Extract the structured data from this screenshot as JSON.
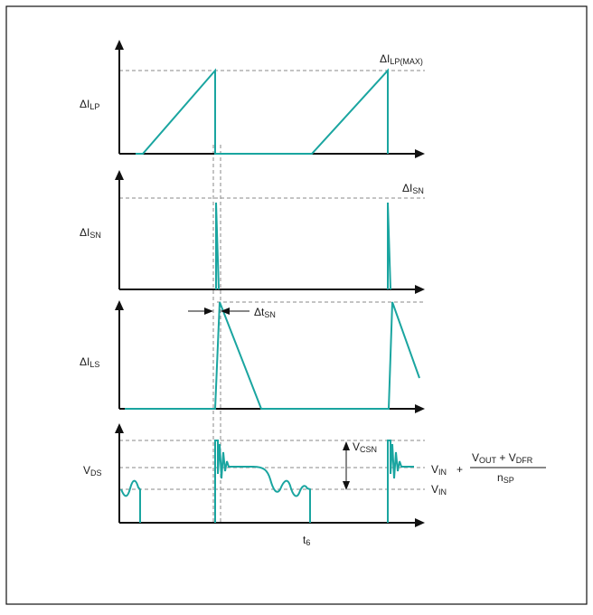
{
  "labels": {
    "p1_ylabel": [
      "ΔI",
      "LP"
    ],
    "p1_peak": [
      "ΔI",
      "LP(MAX)"
    ],
    "p2_ylabel": [
      "ΔI",
      "SN"
    ],
    "p2_peak": [
      "ΔI",
      "SN"
    ],
    "p3_ylabel": [
      "ΔI",
      "LS"
    ],
    "p3_dt": [
      "Δt",
      "SN"
    ],
    "p4_ylabel": [
      "V",
      "DS"
    ],
    "p4_vcsn": [
      "V",
      "CSN"
    ],
    "p4_vin_top": [
      "V",
      "IN"
    ],
    "plus": "+",
    "numerator": [
      "V",
      "OUT",
      " + V",
      "DFR"
    ],
    "denominator": [
      "n",
      "SP"
    ],
    "p4_vin": [
      "V",
      "IN"
    ],
    "time_label": [
      "t",
      "6"
    ]
  },
  "colors": {
    "waveform": "#1aa5a0",
    "axis": "#111111",
    "guide": "#8a8a8a"
  }
}
